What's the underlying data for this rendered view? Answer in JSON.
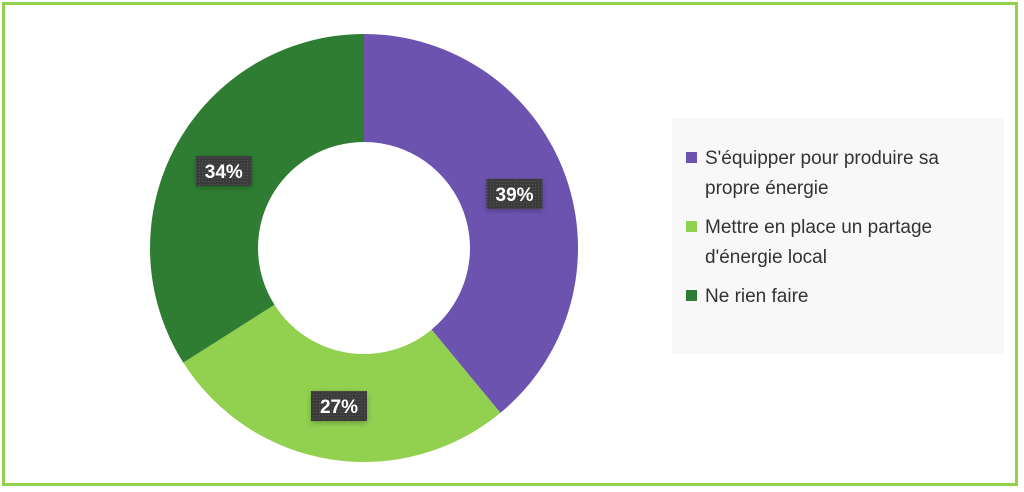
{
  "chart_data": {
    "type": "pie",
    "variant": "donut",
    "title": "",
    "categories": [
      "S'équipper pour produire sa propre énergie",
      "Mettre en place un partage d'énergie local",
      "Ne rien faire"
    ],
    "values": [
      39,
      27,
      34
    ],
    "data_labels": [
      "39%",
      "27%",
      "34%"
    ],
    "colors": [
      "#6c53b0",
      "#92d050",
      "#2e7d32"
    ],
    "legend_position": "right",
    "start_angle_deg": 0,
    "direction": "clockwise"
  },
  "style": {
    "frame_border_color": "#92d050",
    "label_box_color": "#3b3b3b",
    "label_text_color": "#ffffff"
  }
}
